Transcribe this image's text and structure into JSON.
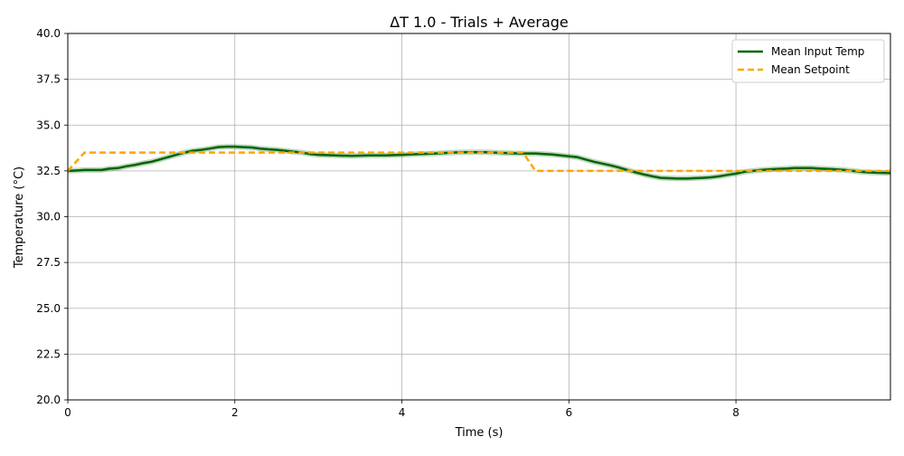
{
  "chart_data": {
    "type": "line",
    "title": "ΔT 1.0 - Trials + Average",
    "xlabel": "Time (s)",
    "ylabel": "Temperature (°C)",
    "xlim": [
      0,
      9.85
    ],
    "ylim": [
      20,
      40
    ],
    "xticks": [
      0,
      2,
      4,
      6,
      8
    ],
    "xtick_labels": [
      "0",
      "2",
      "4",
      "6",
      "8"
    ],
    "yticks": [
      20,
      22.5,
      25,
      27.5,
      30,
      32.5,
      35,
      37.5,
      40
    ],
    "ytick_labels": [
      "20.0",
      "22.5",
      "25.0",
      "27.5",
      "30.0",
      "32.5",
      "35.0",
      "37.5",
      "40.0"
    ],
    "grid": true,
    "legend_position": "top-right",
    "series": [
      {
        "name": "Mean Input Temp",
        "color": "#006400",
        "style": "solid",
        "x": [
          0,
          0.1,
          0.2,
          0.3,
          0.4,
          0.5,
          0.6,
          0.7,
          0.8,
          0.9,
          1.0,
          1.1,
          1.2,
          1.3,
          1.4,
          1.5,
          1.6,
          1.7,
          1.8,
          1.9,
          2.0,
          2.1,
          2.2,
          2.3,
          2.4,
          2.5,
          2.6,
          2.7,
          2.8,
          2.9,
          3.0,
          3.2,
          3.4,
          3.6,
          3.8,
          4.0,
          4.2,
          4.4,
          4.6,
          4.8,
          5.0,
          5.2,
          5.4,
          5.6,
          5.8,
          6.0,
          6.1,
          6.2,
          6.3,
          6.4,
          6.5,
          6.6,
          6.7,
          6.8,
          6.9,
          7.0,
          7.1,
          7.2,
          7.3,
          7.4,
          7.5,
          7.6,
          7.7,
          7.8,
          7.9,
          8.0,
          8.1,
          8.2,
          8.3,
          8.4,
          8.5,
          8.6,
          8.7,
          8.8,
          8.9,
          9.0,
          9.1,
          9.2,
          9.3,
          9.4,
          9.5,
          9.6,
          9.7,
          9.85
        ],
        "values": [
          32.5,
          32.52,
          32.55,
          32.55,
          32.55,
          32.62,
          32.65,
          32.75,
          32.82,
          32.92,
          33.0,
          33.12,
          33.25,
          33.38,
          33.5,
          33.6,
          33.65,
          33.72,
          33.8,
          33.82,
          33.82,
          33.8,
          33.78,
          33.72,
          33.68,
          33.65,
          33.6,
          33.55,
          33.5,
          33.42,
          33.38,
          33.35,
          33.32,
          33.35,
          33.35,
          33.38,
          33.42,
          33.45,
          33.5,
          33.52,
          33.52,
          33.48,
          33.45,
          33.45,
          33.4,
          33.3,
          33.25,
          33.12,
          33.0,
          32.9,
          32.8,
          32.68,
          32.55,
          32.42,
          32.3,
          32.2,
          32.12,
          32.1,
          32.08,
          32.08,
          32.1,
          32.12,
          32.15,
          32.2,
          32.28,
          32.35,
          32.45,
          32.5,
          32.55,
          32.58,
          32.6,
          32.62,
          32.65,
          32.65,
          32.65,
          32.62,
          32.6,
          32.58,
          32.55,
          32.5,
          32.45,
          32.42,
          32.4,
          32.38
        ]
      },
      {
        "name": "Mean Setpoint",
        "color": "#FFA500",
        "style": "dashed",
        "x": [
          0,
          0.2,
          5.45,
          5.6,
          9.85
        ],
        "values": [
          32.5,
          33.5,
          33.5,
          32.5,
          32.5
        ]
      }
    ]
  }
}
